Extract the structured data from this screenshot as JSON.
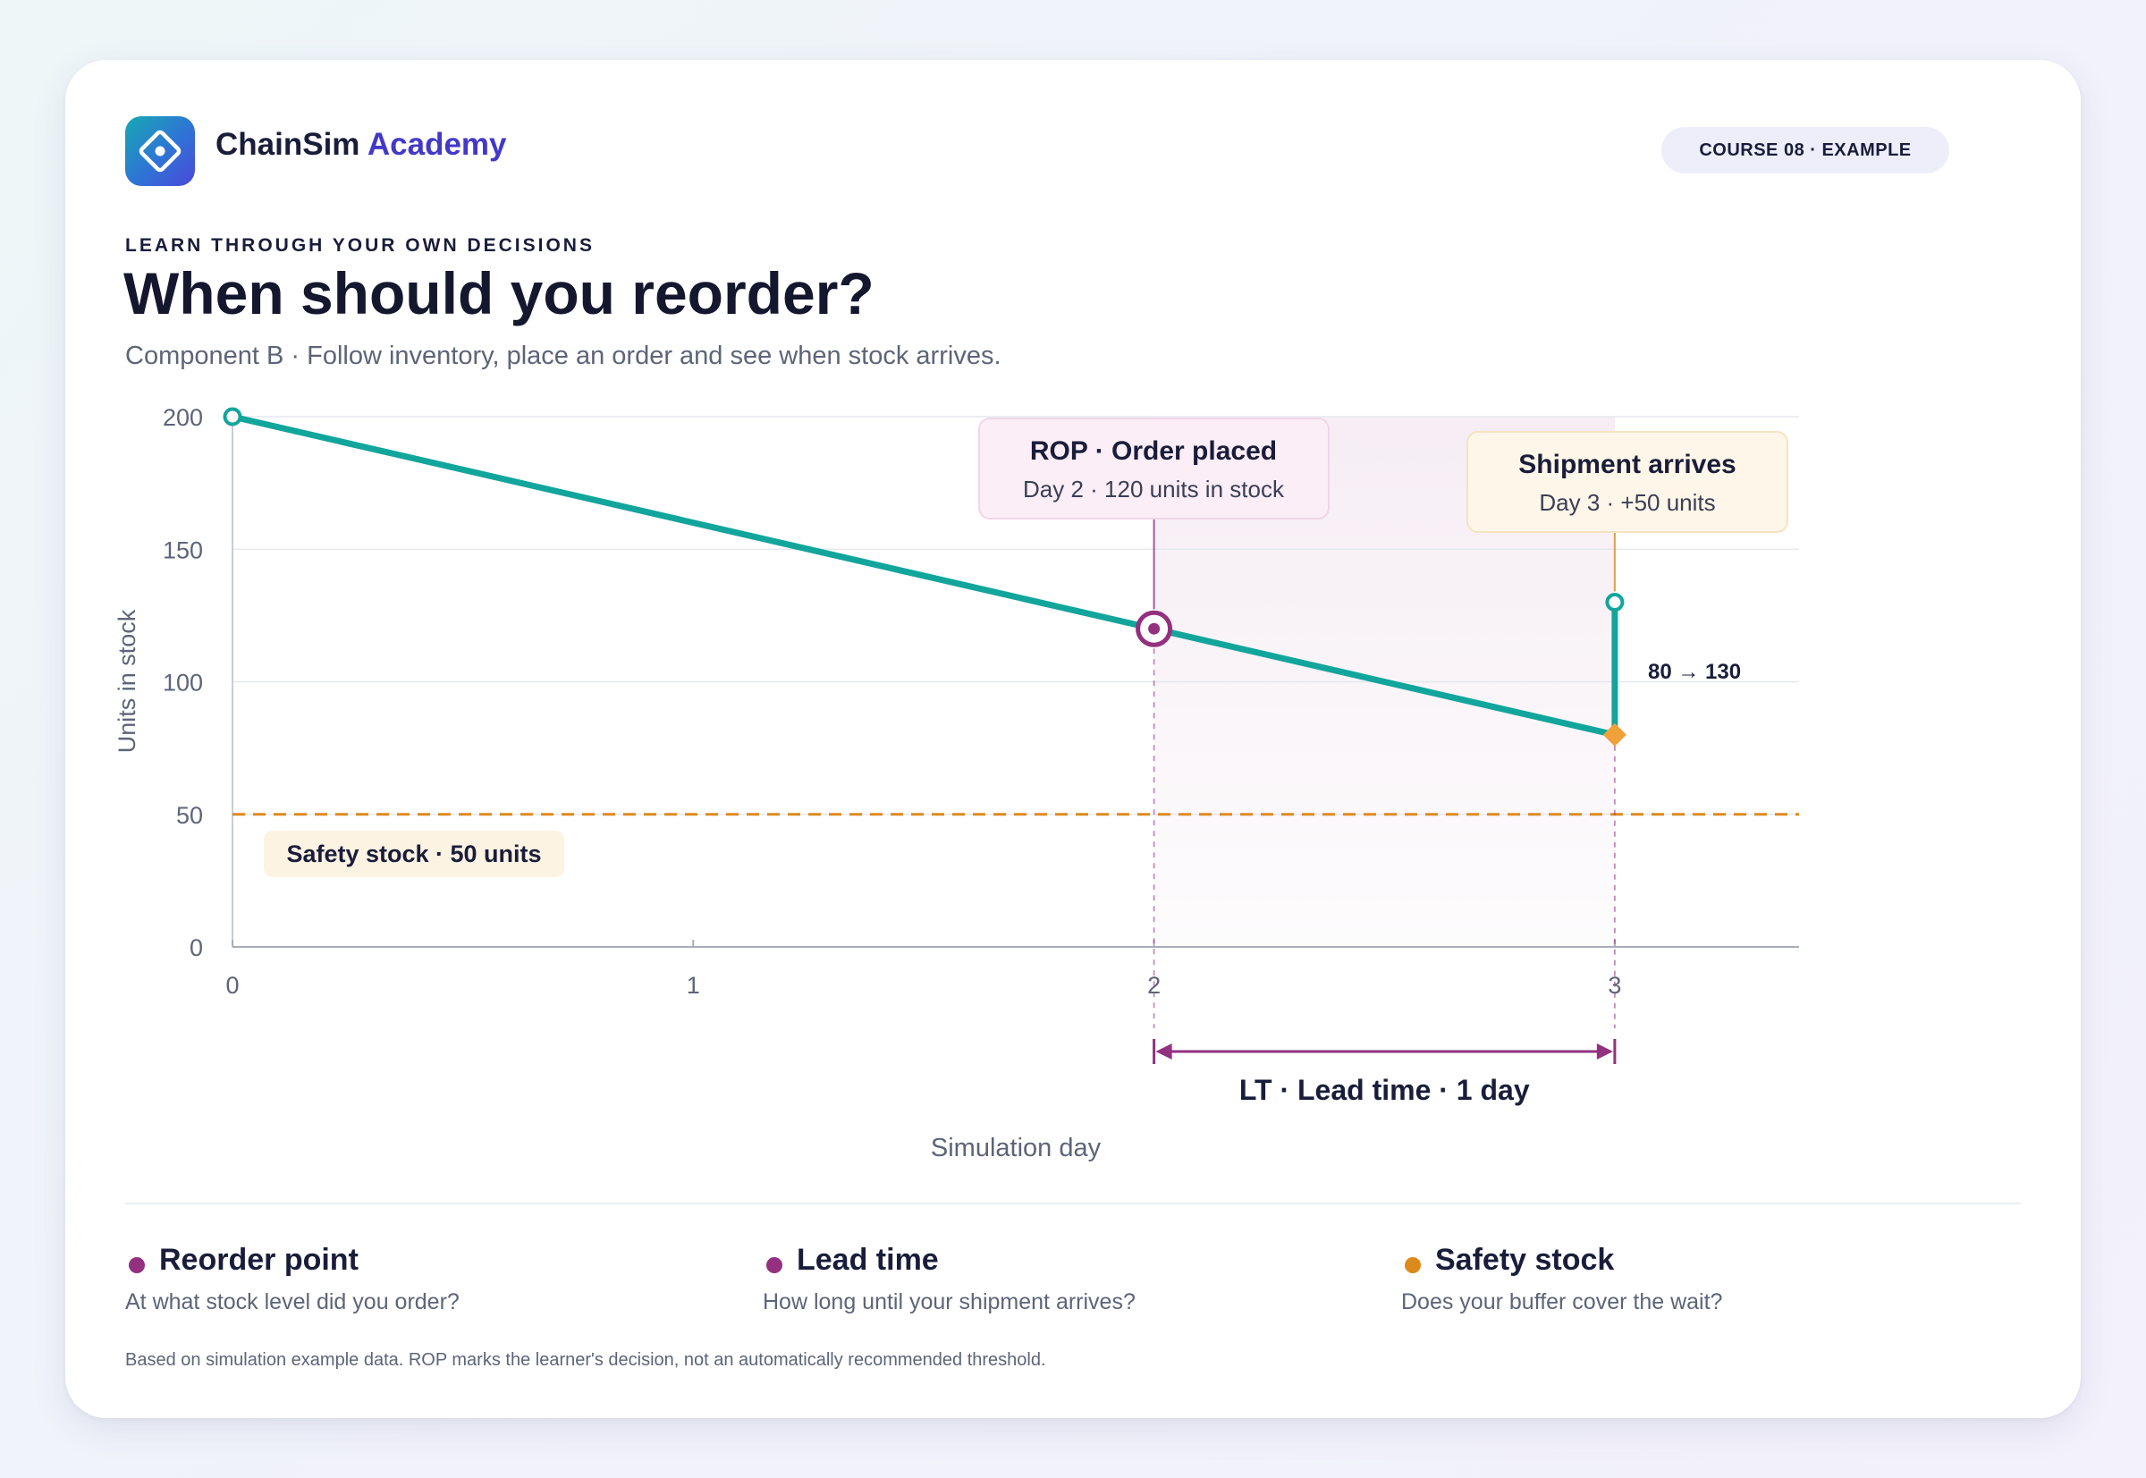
{
  "header": {
    "brand_primary": "ChainSim",
    "brand_accent": "Academy",
    "course_badge": "COURSE 08 · EXAMPLE"
  },
  "intro": {
    "eyebrow": "LEARN THROUGH YOUR OWN DECISIONS",
    "title": "When should you reorder?",
    "subtitle": "Component B · Follow inventory, place an order and see when stock arrives."
  },
  "colors": {
    "inventory": "#12a59c",
    "rop": "#93307f",
    "lead_time": "#93307f",
    "safety": "#dd8a1c",
    "arrival_marker": "#f0a13a",
    "brand_accent": "#4338ca"
  },
  "chart_data": {
    "type": "line",
    "xlabel": "Simulation day",
    "ylabel": "Units in stock",
    "x_ticks": [
      0,
      1,
      2,
      3
    ],
    "y_ticks": [
      0,
      50,
      100,
      150,
      200
    ],
    "xlim": [
      0,
      3.4
    ],
    "ylim": [
      0,
      200
    ],
    "grid": "horizontal",
    "series": [
      {
        "points": [
          [
            0,
            200
          ],
          [
            2,
            120
          ],
          [
            3,
            80
          ],
          [
            3,
            130
          ]
        ]
      }
    ],
    "safety_stock": {
      "value": 50,
      "label": "Safety stock · 50 units"
    },
    "reorder_point": {
      "x": 2,
      "y": 120,
      "title": "ROP · Order placed",
      "detail": "Day 2 · 120 units in stock"
    },
    "shipment": {
      "x": 3,
      "from": 80,
      "to": 130,
      "title": "Shipment arrives",
      "detail": "Day 3 · +50 units",
      "jump_label": "80 → 130"
    },
    "lead_time": {
      "from": 2,
      "to": 3,
      "label": "LT · Lead time · 1 day"
    }
  },
  "legend": [
    {
      "title": "Reorder point",
      "desc": "At what stock level did you order?",
      "color": "#93307f"
    },
    {
      "title": "Lead time",
      "desc": "How long until your shipment arrives?",
      "color": "#93307f"
    },
    {
      "title": "Safety stock",
      "desc": "Does your buffer cover the wait?",
      "color": "#dd8a1c"
    }
  ],
  "footnote": "Based on simulation example data. ROP marks the learner's decision, not an automatically recommended threshold."
}
